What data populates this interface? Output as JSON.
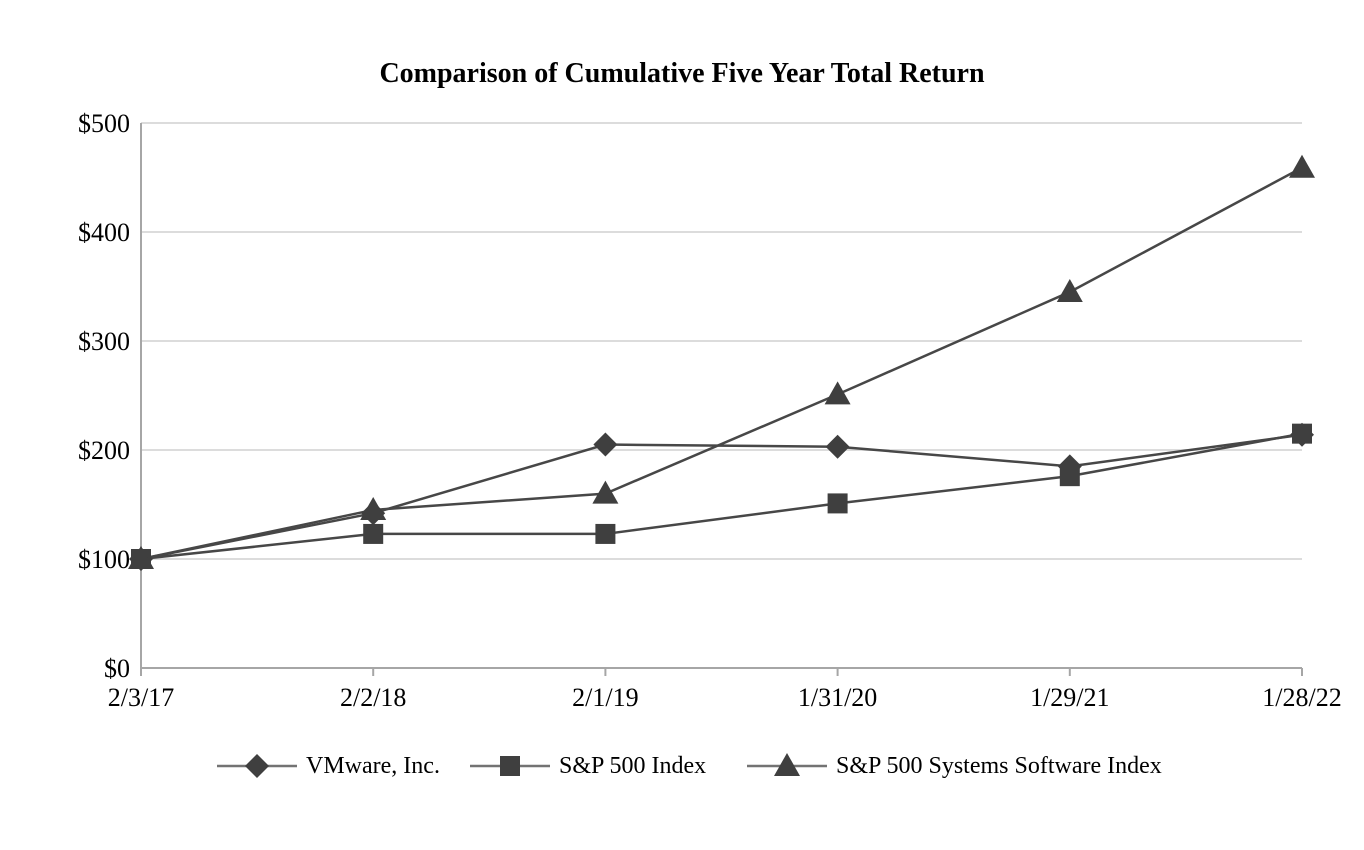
{
  "page": {
    "background": "#ffffff"
  },
  "chart_data": {
    "type": "line",
    "title": "Comparison of Cumulative Five Year Total Return",
    "categories": [
      "2/3/17",
      "2/2/18",
      "2/1/19",
      "1/31/20",
      "1/29/21",
      "1/28/22"
    ],
    "series": [
      {
        "name": "VMware, Inc.",
        "marker": "diamond",
        "values": [
          100,
          142,
          205,
          203,
          185,
          214
        ]
      },
      {
        "name": "S&P 500 Index",
        "marker": "square",
        "values": [
          100,
          123,
          123,
          151,
          176,
          215
        ]
      },
      {
        "name": "S&P 500 Systems Software Index",
        "marker": "triangle",
        "values": [
          100,
          145,
          160,
          251,
          345,
          459
        ]
      }
    ],
    "y_ticks": [
      {
        "value": 0,
        "label": "$0"
      },
      {
        "value": 100,
        "label": "$100"
      },
      {
        "value": 200,
        "label": "$200"
      },
      {
        "value": 300,
        "label": "$300"
      },
      {
        "value": 400,
        "label": "$400"
      },
      {
        "value": 500,
        "label": "$500"
      }
    ],
    "ylim": [
      0,
      500
    ],
    "xlabel": "",
    "ylabel": "",
    "grid": "horizontal",
    "legend_position": "bottom",
    "colors": {
      "series_line": "#474747",
      "marker": "#3f3f3f",
      "gridline": "#dcdcdc",
      "axis": "#a6a6a6",
      "legend_line": "#737373",
      "text": "#000000"
    }
  }
}
